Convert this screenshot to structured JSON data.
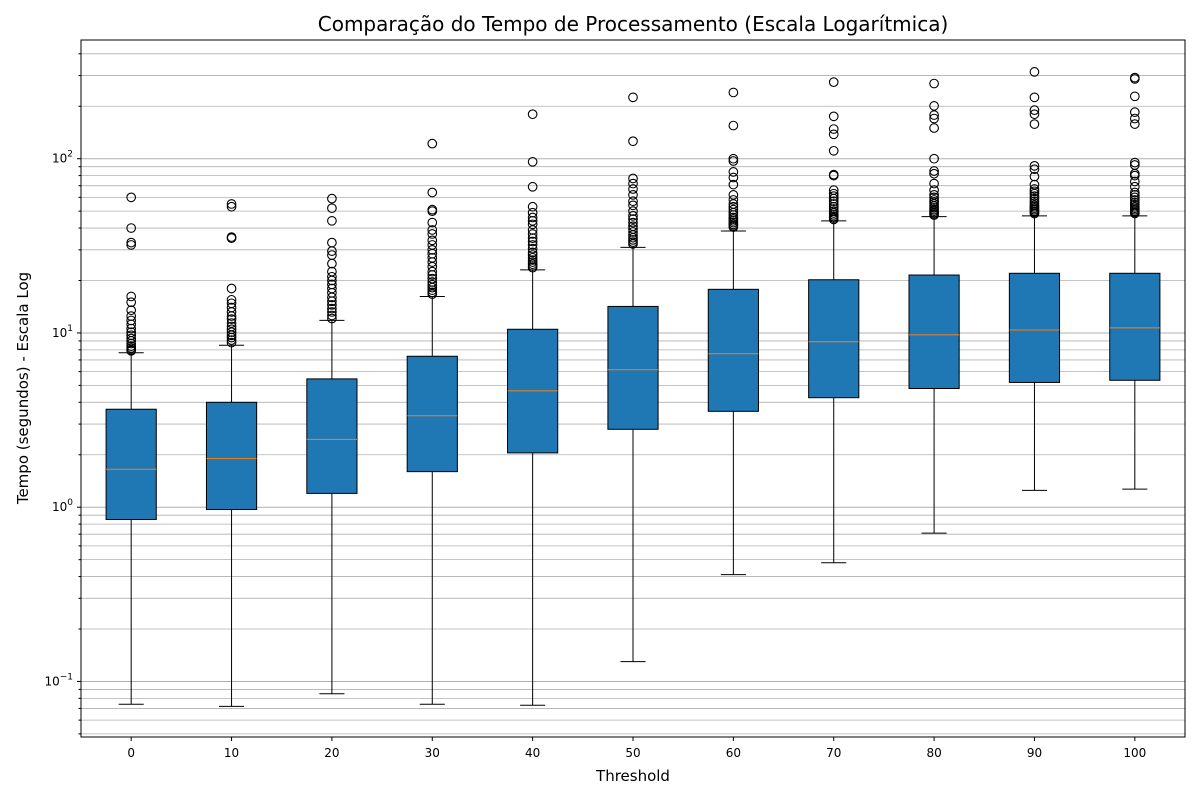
{
  "chart_data": {
    "type": "box",
    "title": "Comparação do Tempo de Processamento (Escala Logarítmica)",
    "xlabel": "Threshold",
    "ylabel": "Tempo (segundos) - Escala Log",
    "yscale": "log",
    "ylim": [
      0.048,
      480
    ],
    "grid": {
      "y_major": true,
      "y_minor": true,
      "x": false
    },
    "colors": {
      "box_fill": "#1f77b4",
      "median": "#ff7f0e",
      "whisker": "#000000"
    },
    "categories": [
      "0",
      "10",
      "20",
      "30",
      "40",
      "50",
      "60",
      "70",
      "80",
      "90",
      "100"
    ],
    "y_ticks": [
      {
        "value": 0.1,
        "base": "10",
        "exp": "−1"
      },
      {
        "value": 1,
        "base": "10",
        "exp": "0"
      },
      {
        "value": 10,
        "base": "10",
        "exp": "1"
      },
      {
        "value": 100,
        "base": "10",
        "exp": "2"
      }
    ],
    "boxes": [
      {
        "category": "0",
        "whislo": 0.074,
        "q1": 0.85,
        "med": 1.65,
        "q3": 3.65,
        "whishi": 7.7,
        "fliers": [
          60,
          40,
          33,
          32,
          16.2,
          15,
          13.5,
          12.5,
          11.8,
          11.2,
          10.6,
          10.1,
          9.7,
          9.3,
          9.0,
          8.7,
          8.4,
          8.2,
          8.0,
          7.9
        ]
      },
      {
        "category": "10",
        "whislo": 0.072,
        "q1": 0.97,
        "med": 1.9,
        "q3": 4.0,
        "whishi": 8.5,
        "fliers": [
          55,
          53,
          35.5,
          35,
          18,
          15.5,
          14.8,
          14,
          13.2,
          12.5,
          12,
          11.4,
          10.9,
          10.5,
          10.1,
          9.7,
          9.4,
          9.1,
          8.8
        ]
      },
      {
        "category": "20",
        "whislo": 0.085,
        "q1": 1.2,
        "med": 2.45,
        "q3": 5.45,
        "whishi": 11.8,
        "fliers": [
          59,
          52,
          44,
          33,
          29.5,
          28,
          25,
          22.5,
          21,
          20,
          19,
          18,
          17,
          16,
          15.2,
          14.5,
          13.8,
          13.2,
          12.6,
          12.1
        ]
      },
      {
        "category": "30",
        "whislo": 0.074,
        "q1": 1.6,
        "med": 3.35,
        "q3": 7.35,
        "whishi": 16.2,
        "fliers": [
          122,
          64,
          51,
          50,
          43,
          39,
          37,
          34,
          32,
          30,
          28.5,
          27,
          25.5,
          24,
          22.5,
          21.5,
          20.5,
          19.6,
          18.9,
          18.2,
          17.6,
          17.1,
          16.7
        ]
      },
      {
        "category": "40",
        "whislo": 0.073,
        "q1": 2.05,
        "med": 4.65,
        "q3": 10.5,
        "whishi": 23.0,
        "fliers": [
          180,
          96,
          69,
          53,
          49,
          46,
          44,
          42,
          39,
          37,
          35,
          33.5,
          32,
          30.5,
          29,
          28,
          27,
          26.2,
          25.5,
          24.8,
          24.2,
          23.7
        ]
      },
      {
        "category": "50",
        "whislo": 0.13,
        "q1": 2.8,
        "med": 6.15,
        "q3": 14.2,
        "whishi": 31.0,
        "fliers": [
          225,
          126,
          77,
          72,
          67,
          62,
          57,
          54,
          50,
          47,
          45,
          43,
          41,
          39.5,
          38,
          36.5,
          35.2,
          34.2,
          33.2,
          32.4
        ]
      },
      {
        "category": "60",
        "whislo": 0.41,
        "q1": 3.55,
        "med": 7.6,
        "q3": 17.8,
        "whishi": 38.5,
        "fliers": [
          240,
          155,
          100,
          97,
          84,
          78,
          71,
          62,
          58,
          55,
          53,
          51,
          49,
          47.5,
          46,
          45,
          44,
          43,
          42,
          41.2,
          40.5
        ]
      },
      {
        "category": "70",
        "whislo": 0.48,
        "q1": 4.25,
        "med": 8.9,
        "q3": 20.2,
        "whishi": 44.0,
        "fliers": [
          275,
          175,
          148,
          138,
          111,
          81,
          80,
          66,
          63,
          61,
          59,
          57,
          55,
          53,
          51.5,
          50,
          48.8,
          47.6,
          46.5,
          45.6,
          44.8
        ]
      },
      {
        "category": "80",
        "whislo": 0.71,
        "q1": 4.8,
        "med": 9.75,
        "q3": 21.5,
        "whishi": 46.5,
        "fliers": [
          270,
          201,
          178,
          170,
          150,
          100,
          85,
          82,
          72,
          66,
          62,
          60,
          58,
          56.5,
          55,
          53.5,
          52.2,
          51,
          50,
          49,
          48.2,
          47.5
        ]
      },
      {
        "category": "90",
        "whislo": 1.25,
        "q1": 5.2,
        "med": 10.4,
        "q3": 22.0,
        "whishi": 47.0,
        "fliers": [
          315,
          225,
          190,
          180,
          158,
          91,
          87,
          79,
          71,
          67,
          65,
          63,
          61,
          59,
          57,
          55.5,
          54,
          53,
          52,
          51,
          50,
          49.2,
          48.4
        ]
      },
      {
        "category": "100",
        "whislo": 1.27,
        "q1": 5.35,
        "med": 10.7,
        "q3": 22.0,
        "whishi": 47.0,
        "fliers": [
          292,
          287,
          228,
          185,
          170,
          158,
          95,
          92,
          82,
          80,
          74,
          69,
          64,
          62,
          60,
          58,
          56,
          54.5,
          53,
          52,
          51,
          50,
          49.2,
          48.5
        ]
      }
    ]
  }
}
